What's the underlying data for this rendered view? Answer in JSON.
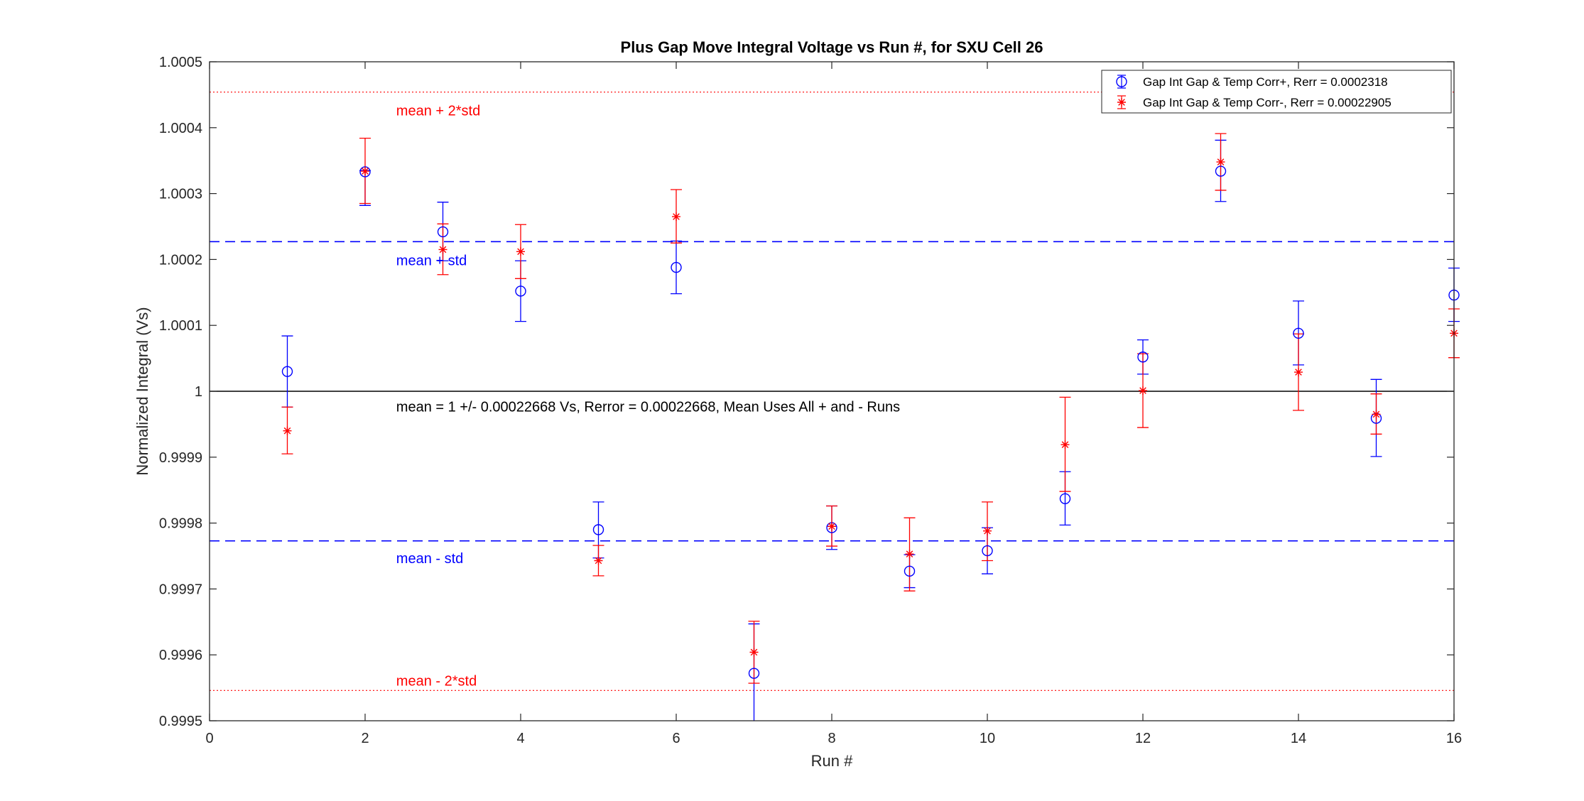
{
  "chart_data": {
    "type": "scatter",
    "title": "Plus Gap Move Integral Voltage vs Run #, for SXU Cell 26",
    "xlabel": "Run #",
    "ylabel": "Normalized Integral (Vs)",
    "xlim": [
      0,
      16
    ],
    "ylim": [
      0.9995,
      1.0005
    ],
    "xticks": [
      0,
      2,
      4,
      6,
      8,
      10,
      12,
      14,
      16
    ],
    "yticks": [
      0.9995,
      0.9996,
      0.9997,
      0.9998,
      0.9999,
      1,
      1.0001,
      1.0002,
      1.0003,
      1.0004,
      1.0005
    ],
    "ytick_labels": [
      "0.9995",
      "0.9996",
      "0.9997",
      "0.9998",
      "0.9999",
      "1",
      "1.0001",
      "1.0002",
      "1.0003",
      "1.0004",
      "1.0005"
    ],
    "grid": false,
    "legend_position": "top-right",
    "series": [
      {
        "name": "Gap Int Gap & Temp Corr+, Rerr = 0.0002318",
        "color": "#0000ff",
        "marker": "circle",
        "points": [
          {
            "x": 1,
            "y": 1.00003,
            "lo": 0.999976,
            "hi": 1.000084
          },
          {
            "x": 2,
            "y": 1.000333,
            "lo": 1.000282,
            "hi": 1.000335
          },
          {
            "x": 3,
            "y": 1.000242,
            "lo": 1.000198,
            "hi": 1.000287
          },
          {
            "x": 4,
            "y": 1.000152,
            "lo": 1.000106,
            "hi": 1.000198
          },
          {
            "x": 5,
            "y": 0.99979,
            "lo": 0.999747,
            "hi": 0.999832
          },
          {
            "x": 6,
            "y": 1.000188,
            "lo": 1.000148,
            "hi": 1.000228
          },
          {
            "x": 7,
            "y": 0.999572,
            "lo": 0.999492,
            "hi": 0.999647
          },
          {
            "x": 8,
            "y": 0.999793,
            "lo": 0.99976,
            "hi": 0.999826
          },
          {
            "x": 9,
            "y": 0.999727,
            "lo": 0.999702,
            "hi": 0.999752
          },
          {
            "x": 10,
            "y": 0.999758,
            "lo": 0.999723,
            "hi": 0.999793
          },
          {
            "x": 11,
            "y": 0.999837,
            "lo": 0.999797,
            "hi": 0.999878
          },
          {
            "x": 12,
            "y": 1.000052,
            "lo": 1.000026,
            "hi": 1.000078
          },
          {
            "x": 13,
            "y": 1.000334,
            "lo": 1.000288,
            "hi": 1.000381
          },
          {
            "x": 14,
            "y": 1.000088,
            "lo": 1.00004,
            "hi": 1.000137
          },
          {
            "x": 15,
            "y": 0.999959,
            "lo": 0.999901,
            "hi": 1.000018
          },
          {
            "x": 16,
            "y": 1.000146,
            "lo": 1.000106,
            "hi": 1.000187
          }
        ]
      },
      {
        "name": "Gap Int Gap & Temp  Corr-, Rerr = 0.00022905",
        "color": "#ff0000",
        "marker": "asterisk",
        "points": [
          {
            "x": 1,
            "y": 0.99994,
            "lo": 0.999905,
            "hi": 0.999976
          },
          {
            "x": 2,
            "y": 1.000334,
            "lo": 1.000285,
            "hi": 1.000384
          },
          {
            "x": 3,
            "y": 1.000215,
            "lo": 1.000177,
            "hi": 1.000254
          },
          {
            "x": 4,
            "y": 1.000212,
            "lo": 1.000171,
            "hi": 1.000253
          },
          {
            "x": 5,
            "y": 0.999743,
            "lo": 0.99972,
            "hi": 0.999766
          },
          {
            "x": 6,
            "y": 1.000265,
            "lo": 1.000225,
            "hi": 1.000306
          },
          {
            "x": 7,
            "y": 0.999604,
            "lo": 0.999557,
            "hi": 0.999651
          },
          {
            "x": 8,
            "y": 0.999795,
            "lo": 0.999765,
            "hi": 0.999826
          },
          {
            "x": 9,
            "y": 0.999753,
            "lo": 0.999697,
            "hi": 0.999808
          },
          {
            "x": 10,
            "y": 0.999788,
            "lo": 0.999743,
            "hi": 0.999832
          },
          {
            "x": 11,
            "y": 0.999919,
            "lo": 0.999848,
            "hi": 0.999991
          },
          {
            "x": 12,
            "y": 1.000001,
            "lo": 0.999945,
            "hi": 1.000057
          },
          {
            "x": 13,
            "y": 1.000348,
            "lo": 1.000305,
            "hi": 1.000391
          },
          {
            "x": 14,
            "y": 1.000029,
            "lo": 0.999971,
            "hi": 1.000087
          },
          {
            "x": 15,
            "y": 0.999965,
            "lo": 0.999935,
            "hi": 0.999996
          },
          {
            "x": 16,
            "y": 1.000088,
            "lo": 1.000051,
            "hi": 1.000125
          }
        ]
      }
    ],
    "reference_lines": [
      {
        "y": 1.000454,
        "color": "#ff0000",
        "style": "dotted",
        "label": "mean + 2*std",
        "label_x": 2.4,
        "label_y": 1.000426
      },
      {
        "y": 1.000227,
        "color": "#0000ff",
        "style": "dashed",
        "label": "mean + std",
        "label_x": 2.4,
        "label_y": 1.000199
      },
      {
        "y": 1.0,
        "color": "#000000",
        "style": "solid",
        "label": "mean = 1 +/- 0.00022668 Vs, Rerror = 0.00022668, Mean Uses All + and - Runs",
        "label_x": 2.4,
        "label_y": 0.999977
      },
      {
        "y": 0.999773,
        "color": "#0000ff",
        "style": "dashed",
        "label": "mean - std",
        "label_x": 2.4,
        "label_y": 0.999747
      },
      {
        "y": 0.999546,
        "color": "#ff0000",
        "style": "dotted",
        "label": "mean - 2*std",
        "label_x": 2.4,
        "label_y": 0.999561
      }
    ]
  }
}
